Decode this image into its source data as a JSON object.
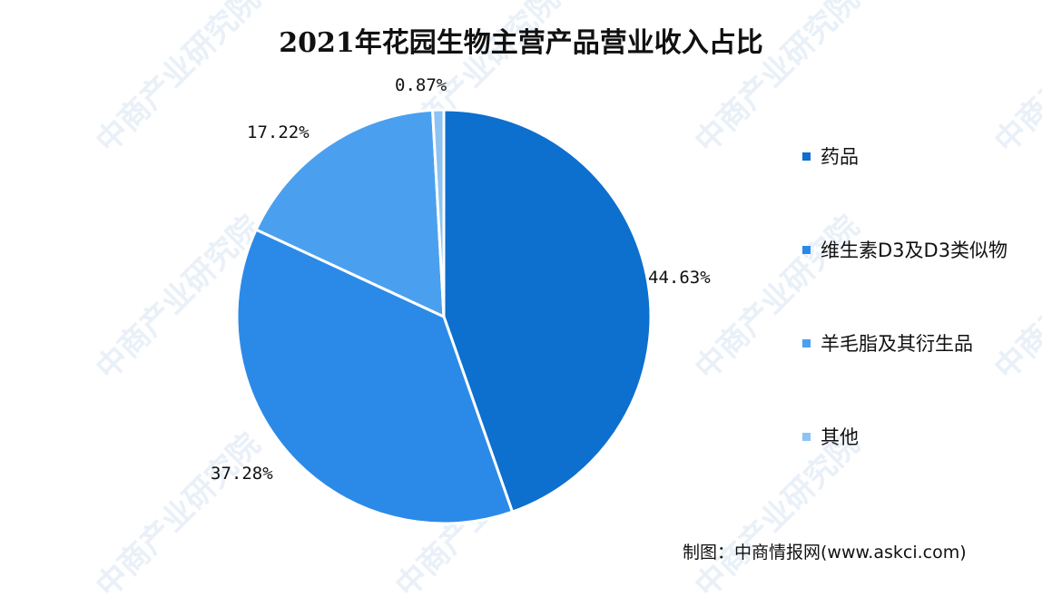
{
  "chart_data": {
    "type": "pie",
    "title": "2021年花园生物主营产品营业收入占比",
    "categories": [
      "药品",
      "维生素D3及D3类似物",
      "羊毛脂及其衍生品",
      "其他"
    ],
    "values": [
      44.63,
      37.28,
      17.22,
      0.87
    ],
    "data_labels": [
      "44.63%",
      "37.28%",
      "17.22%",
      "0.87%"
    ],
    "colors": [
      "#0d6fce",
      "#2b8ae8",
      "#4aa0ee",
      "#8cc3f4"
    ],
    "legend_position": "right",
    "legend_labels": [
      "药品",
      "维生素D3及D3类似物",
      "羊毛脂及其衍生品",
      "其他"
    ],
    "start_angle_deg": 0,
    "direction": "clockwise"
  },
  "source": "制图：中商情报网(www.askci.com)",
  "watermark": "中商产业研究院"
}
